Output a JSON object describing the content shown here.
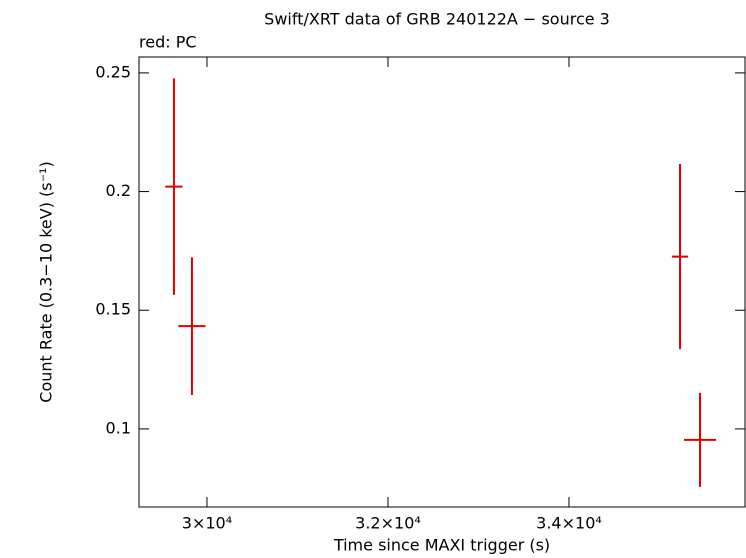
{
  "chart_data": {
    "type": "scatter",
    "title": "Swift/XRT data of GRB 240122A − source 3",
    "subtitle": "red: PC",
    "x_label": "Time since MAXI trigger (s)",
    "y_label": "Count Rate (0.3−10 keV) (s⁻¹)",
    "color": "#e00000",
    "x": [
      29635,
      29834,
      35227,
      35448
    ],
    "xerr": [
      95,
      150,
      90,
      177
    ],
    "values": [
      0.2021,
      0.1433,
      0.1726,
      0.0954
    ],
    "yerr": [
      0.0456,
      0.029,
      0.039,
      0.0198
    ],
    "xlim": [
      29249,
      35945
    ],
    "ylim": [
      0.0671,
      0.2567
    ],
    "xticks": [
      {
        "value": 30000,
        "label": "3×10⁴"
      },
      {
        "value": 32000,
        "label": "3.2×10⁴"
      },
      {
        "value": 34000,
        "label": "3.4×10⁴"
      }
    ],
    "yticks": [
      0.1,
      0.15,
      0.2,
      0.25
    ]
  }
}
